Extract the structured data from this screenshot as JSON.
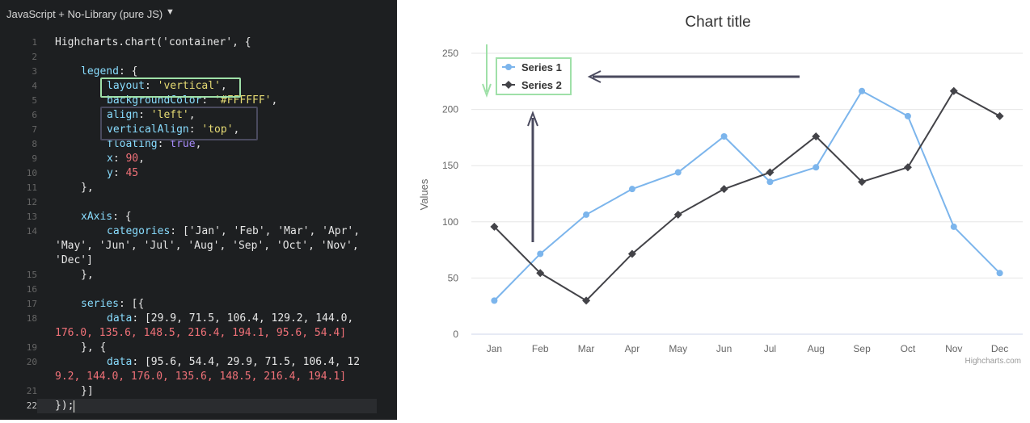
{
  "editor": {
    "language_label": "JavaScript + No-Library (pure JS)",
    "caret": "▼",
    "line_numbers": [
      "1",
      "2",
      "3",
      "4",
      "5",
      "6",
      "7",
      "8",
      "9",
      "10",
      "11",
      "12",
      "13",
      "14",
      "15",
      "16",
      "17",
      "18",
      "19",
      "20",
      "21",
      "22"
    ],
    "lines": {
      "l1": "Highcharts.chart('container', {",
      "l3": "legend: {",
      "l4": "layout: 'vertical',",
      "l5": "backgroundColor: '#FFFFFF',",
      "l6": "align: 'left',",
      "l7": "verticalAlign: 'top',",
      "l8": "floating: true,",
      "l9": "x: 90,",
      "l10": "y: 45",
      "l11": "},",
      "l13": "xAxis: {",
      "l14a": "categories: ['Jan', 'Feb', 'Mar', 'Apr',",
      "l14b": "'May', 'Jun', 'Jul', 'Aug', 'Sep', 'Oct', 'Nov',",
      "l14c": "'Dec']",
      "l15": "},",
      "l17": "series: [{",
      "l18a": "data: [29.9, 71.5, 106.4, 129.2, 144.0,",
      "l18b": "176.0, 135.6, 148.5, 216.4, 194.1, 95.6, 54.4]",
      "l19": "}, {",
      "l20a": "data: [95.6, 54.4, 29.9, 71.5, 106.4, 12",
      "l20b": "9.2, 144.0, 176.0, 135.6, 148.5, 216.4, 194.1]",
      "l21": "}]",
      "l22": "});"
    }
  },
  "colors": {
    "series1": "#7cb5ec",
    "series2": "#434348",
    "legend_highlight": "#9fe0a8",
    "arrow": "#4a4a5e"
  },
  "chart_data": {
    "type": "line",
    "title": "Chart title",
    "ylabel": "Values",
    "xlabel": "",
    "categories": [
      "Jan",
      "Feb",
      "Mar",
      "Apr",
      "May",
      "Jun",
      "Jul",
      "Aug",
      "Sep",
      "Oct",
      "Nov",
      "Dec"
    ],
    "ylim": [
      0,
      250
    ],
    "yticks": [
      "0",
      "50",
      "100",
      "150",
      "200",
      "250"
    ],
    "grid": true,
    "legend_position": "top-left",
    "series": [
      {
        "name": "Series 1",
        "marker": "circle",
        "values": [
          29.9,
          71.5,
          106.4,
          129.2,
          144.0,
          176.0,
          135.6,
          148.5,
          216.4,
          194.1,
          95.6,
          54.4
        ]
      },
      {
        "name": "Series 2",
        "marker": "diamond",
        "values": [
          95.6,
          54.4,
          29.9,
          71.5,
          106.4,
          129.2,
          144.0,
          176.0,
          135.6,
          148.5,
          216.4,
          194.1
        ]
      }
    ],
    "credits": "Highcharts.com"
  }
}
